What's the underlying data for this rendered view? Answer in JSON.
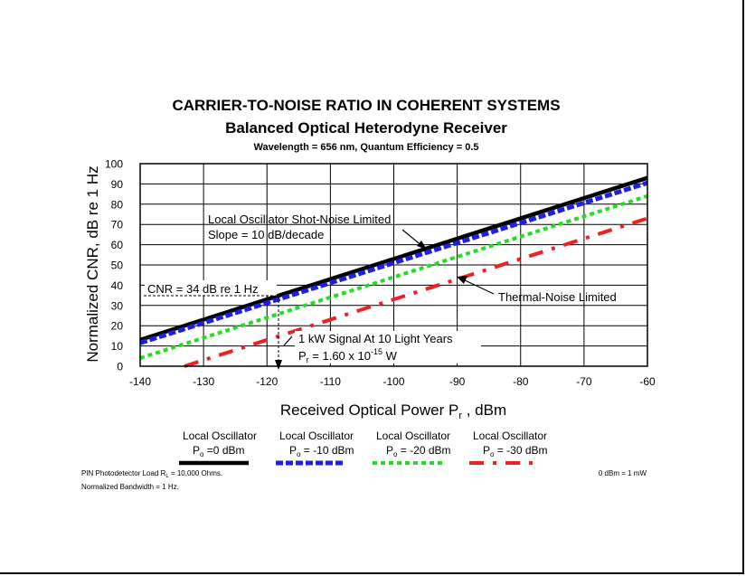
{
  "chart_data": {
    "type": "line",
    "title": "CARRIER-TO-NOISE RATIO IN COHERENT SYSTEMS",
    "subtitle": "Balanced Optical Heterodyne Receiver",
    "subtitle2": "Wavelength = 656 nm, Quantum Efficiency = 0.5",
    "xlabel_main": "Received Optical Power P",
    "xlabel_sub": "r",
    "xlabel_unit": " , dBm",
    "ylabel": "Normalized CNR, dB re 1 Hz",
    "xlim": [
      -140,
      -60
    ],
    "ylim": [
      0,
      100
    ],
    "xticks": [
      "-140",
      "-130",
      "-120",
      "-110",
      "-100",
      "-90",
      "-80",
      "-70",
      "-60"
    ],
    "yticks": [
      "0",
      "10",
      "20",
      "30",
      "40",
      "50",
      "60",
      "70",
      "80",
      "90",
      "100"
    ],
    "series": [
      {
        "name": "Local Oscillator P",
        "sub": "o",
        "value_label": "=0 dBm",
        "color": "#000000",
        "x": [
          -140,
          -60
        ],
        "y": [
          13,
          93
        ]
      },
      {
        "name": "Local Oscillator P",
        "sub": "o",
        "value_label": "= -10 dBm",
        "color": "#1e1ee6",
        "x": [
          -140,
          -60
        ],
        "y": [
          11.5,
          90.5
        ]
      },
      {
        "name": "Local Oscillator P",
        "sub": "o",
        "value_label": "= -20 dBm",
        "color": "#22dd22",
        "x": [
          -140,
          -60
        ],
        "y": [
          4,
          84
        ]
      },
      {
        "name": "Local Oscillator P",
        "sub": "o",
        "value_label": "= -30 dBm",
        "color": "#ee2020",
        "x": [
          -133,
          -60
        ],
        "y": [
          0,
          73
        ]
      }
    ],
    "annotations": {
      "shot_noise_1": "Local Oscillator Shot-Noise Limited",
      "shot_noise_2": "Slope = 10 dB/decade",
      "thermal": "Thermal-Noise Limited",
      "cnr": "CNR = 34 dB re 1 Hz",
      "signal_1": "1 kW Signal At 10 Light Years",
      "signal_2_prefix": "P",
      "signal_2_sub": "r",
      "signal_2_mid": " = 1.60 x 10",
      "signal_2_exp": "-15",
      "signal_2_unit": " W"
    },
    "footnotes": {
      "load_prefix": "PIN Photodetector Load R",
      "load_sub": "L",
      "load_value": " = 10,000 Ohms.",
      "bandwidth": "Normalized Bandwidth = 1 Hz.",
      "dbm_note": "0 dBm = 1 mW"
    }
  }
}
